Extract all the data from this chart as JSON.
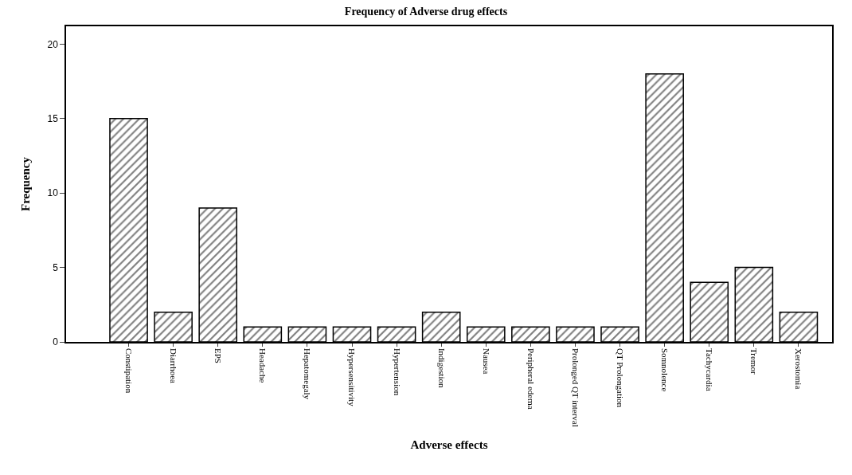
{
  "chart_data": {
    "type": "bar",
    "title": "Frequency of Adverse drug effects",
    "xlabel": "Adverse effects",
    "ylabel": "Frequency",
    "categories": [
      "Constipation",
      "Diarrhoea",
      "EPS",
      "Headache",
      "Hepatomegaly",
      "Hypersensitivity",
      "Hypertension",
      "Indigestion",
      "Nausea",
      "Peripheral edema",
      "Prolonged QT interval",
      "QT Prolongation",
      "Somnolence",
      "Tachycardia",
      "Tremor",
      "Xerostomia"
    ],
    "values": [
      15,
      2,
      9,
      1,
      1,
      1,
      1,
      2,
      1,
      1,
      1,
      1,
      18,
      4,
      5,
      2
    ],
    "color": "#000000",
    "ylim": [
      0,
      21.2
    ],
    "yticks": [
      0,
      5,
      10,
      15,
      20
    ]
  }
}
